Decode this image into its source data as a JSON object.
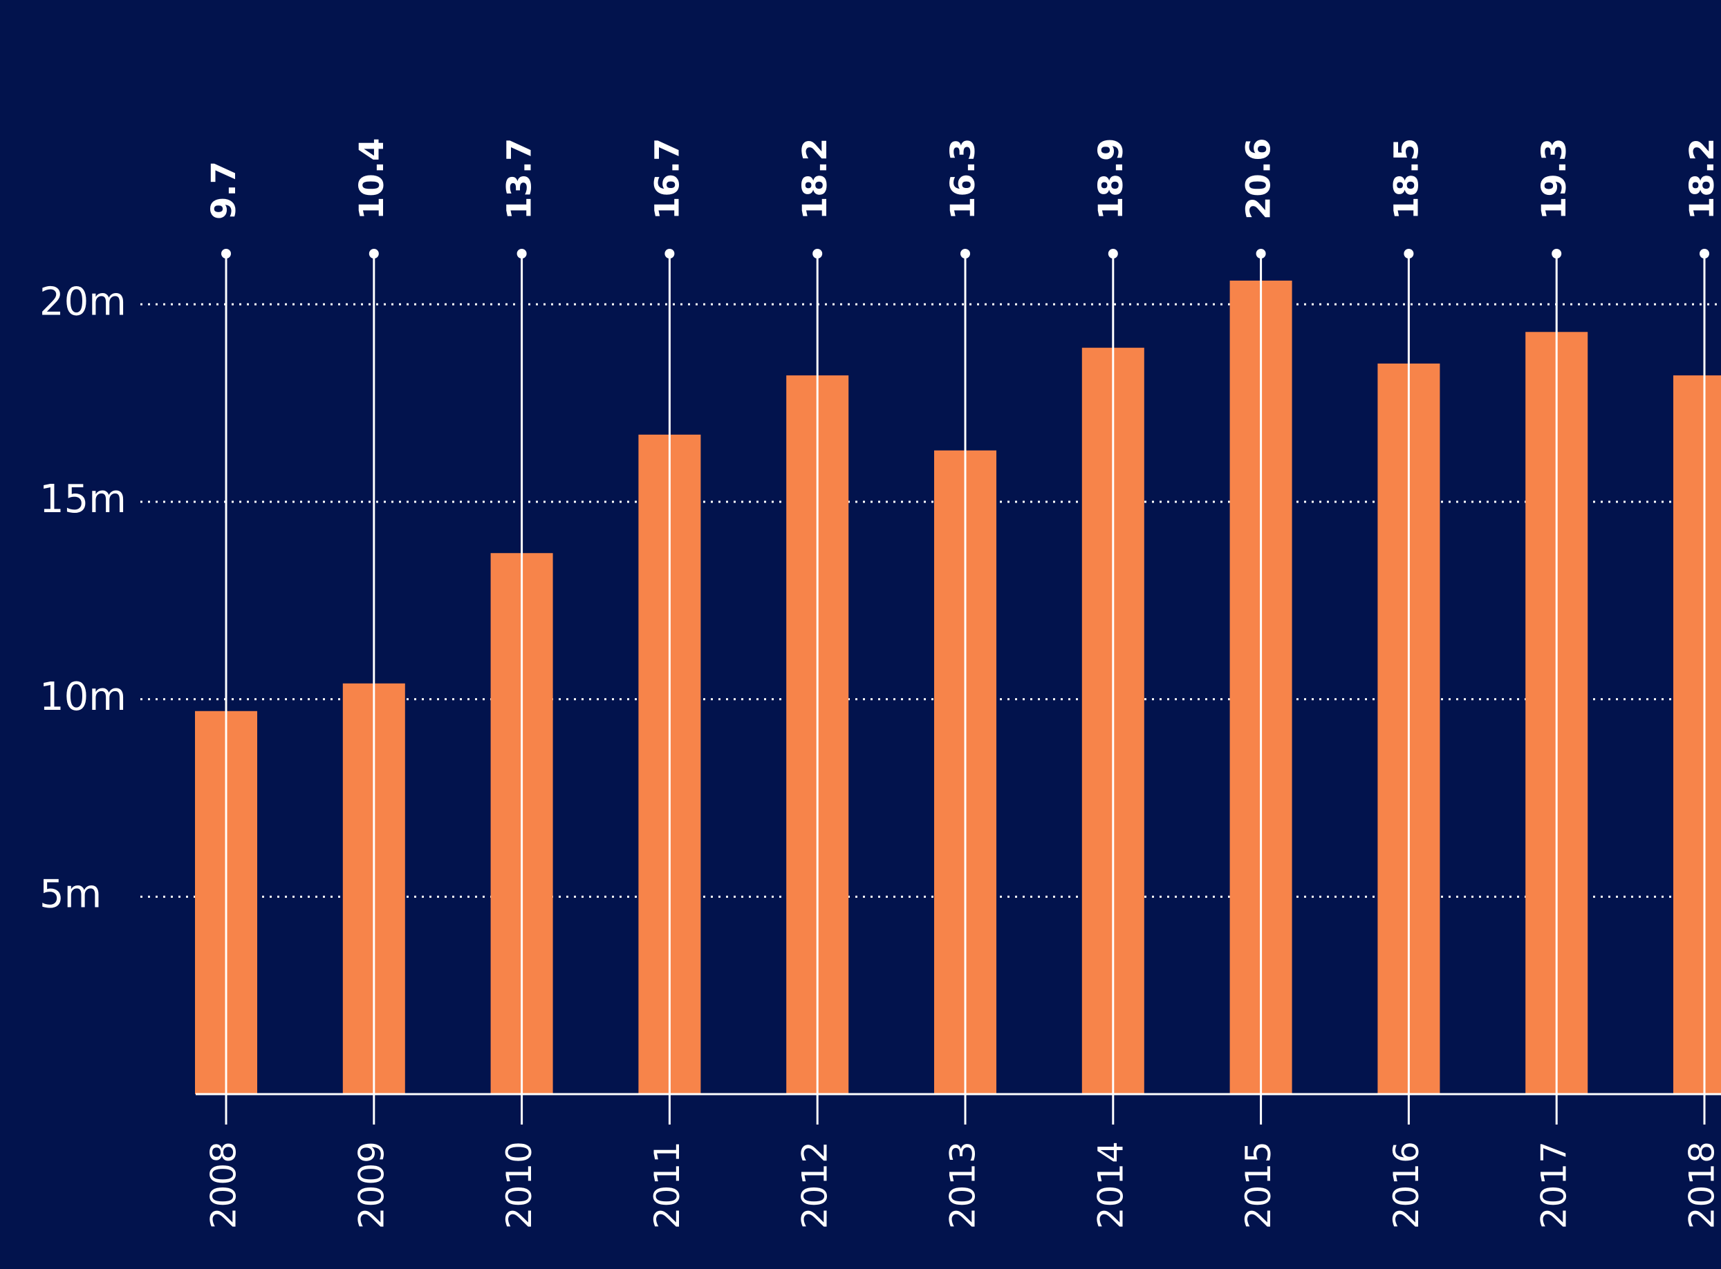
{
  "chart_data": {
    "type": "bar",
    "categories": [
      "2008",
      "2009",
      "2010",
      "2011",
      "2012",
      "2013",
      "2014",
      "2015",
      "2016",
      "2017",
      "2018"
    ],
    "values": [
      9.7,
      10.4,
      13.7,
      16.7,
      18.2,
      16.3,
      18.9,
      20.6,
      18.5,
      19.3,
      18.2
    ],
    "color": "#f7844a",
    "ylim": [
      0,
      22
    ],
    "yticks": [
      {
        "value": 5,
        "label": "5m"
      },
      {
        "value": 10,
        "label": "10m"
      },
      {
        "value": 15,
        "label": "15m"
      },
      {
        "value": 20,
        "label": "20m"
      }
    ],
    "grid": true
  }
}
